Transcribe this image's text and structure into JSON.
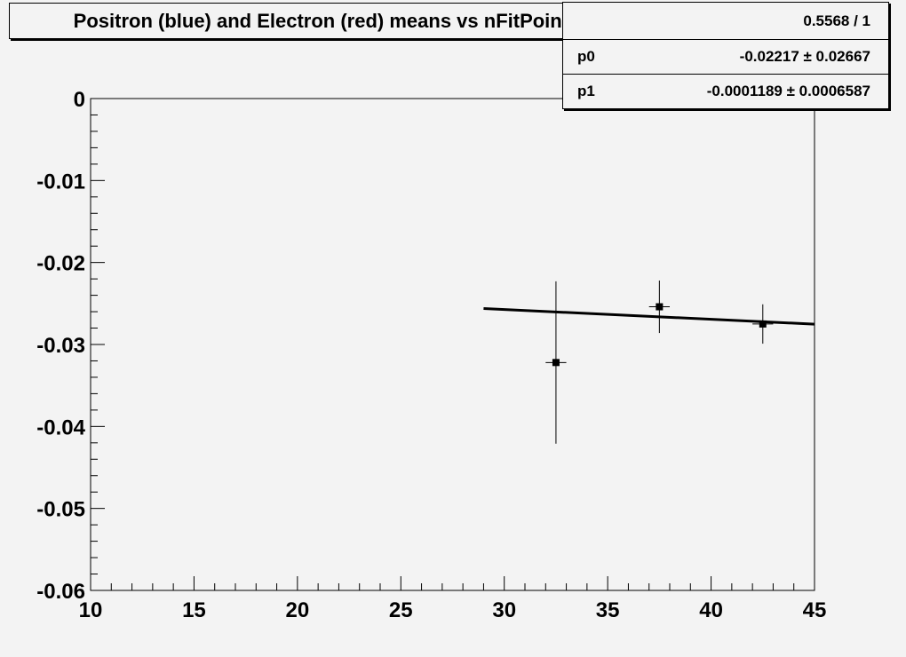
{
  "chart_data": {
    "type": "scatter",
    "title": "Positron (blue) and Electron (red) means vs nFitPoints",
    "xlabel": "",
    "ylabel": "",
    "xlim": [
      10,
      45
    ],
    "ylim": [
      -0.06,
      0
    ],
    "x_ticks": [
      "10",
      "15",
      "20",
      "25",
      "30",
      "35",
      "40",
      "45"
    ],
    "y_ticks": [
      "0",
      "-0.01",
      "-0.02",
      "-0.03",
      "-0.04",
      "-0.05",
      "-0.06"
    ],
    "grid": false,
    "points": [
      {
        "x": 32.5,
        "y": -0.0322,
        "xerr": 0.5,
        "yerr": 0.0099
      },
      {
        "x": 37.5,
        "y": -0.0254,
        "xerr": 0.5,
        "yerr": 0.0032
      },
      {
        "x": 42.5,
        "y": -0.0275,
        "xerr": 0.5,
        "yerr": 0.0024
      }
    ],
    "fit": {
      "type": "pol1",
      "p0": -0.02217,
      "p1": -0.0001189,
      "xrange": [
        29,
        45
      ]
    },
    "marker_color": "#000000",
    "background_color": "#f3f3f3"
  },
  "stats": {
    "chi2_ndf": "0.5568 / 1",
    "rows": [
      {
        "name": "p0",
        "value": "-0.02217 ± 0.02667"
      },
      {
        "name": "p1",
        "value": "-0.0001189 ± 0.0006587"
      }
    ]
  }
}
